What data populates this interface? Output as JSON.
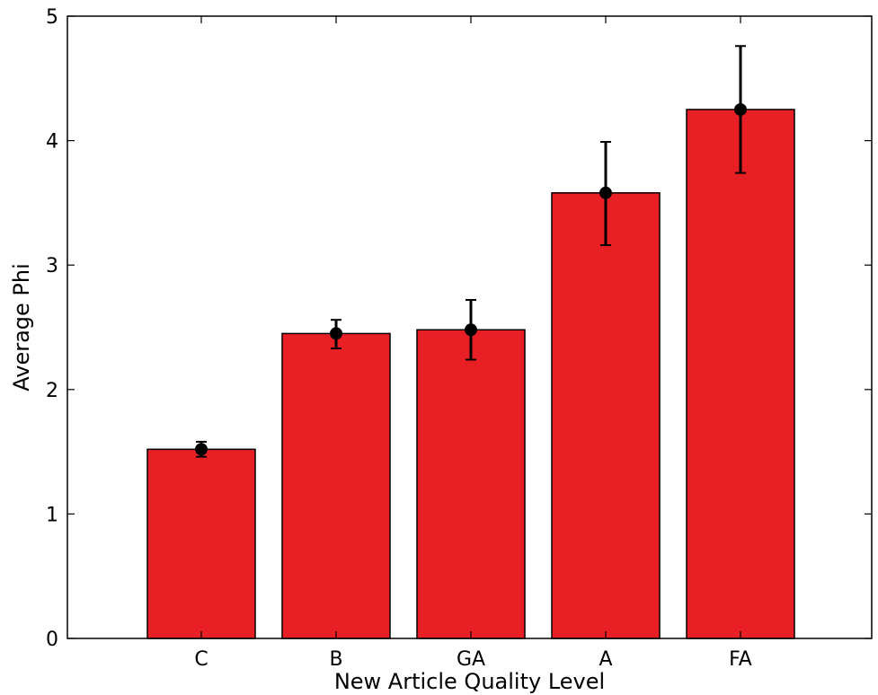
{
  "chart_data": {
    "type": "bar",
    "title": "",
    "xlabel": "New Article Quality Level",
    "ylabel": "Average Phi",
    "categories": [
      "C",
      "B",
      "GA",
      "A",
      "FA"
    ],
    "values": [
      1.52,
      2.45,
      2.48,
      3.58,
      4.25
    ],
    "errors": [
      [
        1.46,
        1.58
      ],
      [
        2.33,
        2.56
      ],
      [
        2.24,
        2.72
      ],
      [
        3.16,
        3.99
      ],
      [
        3.74,
        4.76
      ]
    ],
    "ylim": [
      0,
      5
    ],
    "yticks": [
      "0",
      "1",
      "2",
      "3",
      "4",
      "5"
    ],
    "grid": false,
    "legend": "none",
    "colors": {
      "bar": "#e82026",
      "bar_edge": "#000000",
      "error": "#000000",
      "marker": "#000000",
      "axis": "#000000"
    }
  }
}
